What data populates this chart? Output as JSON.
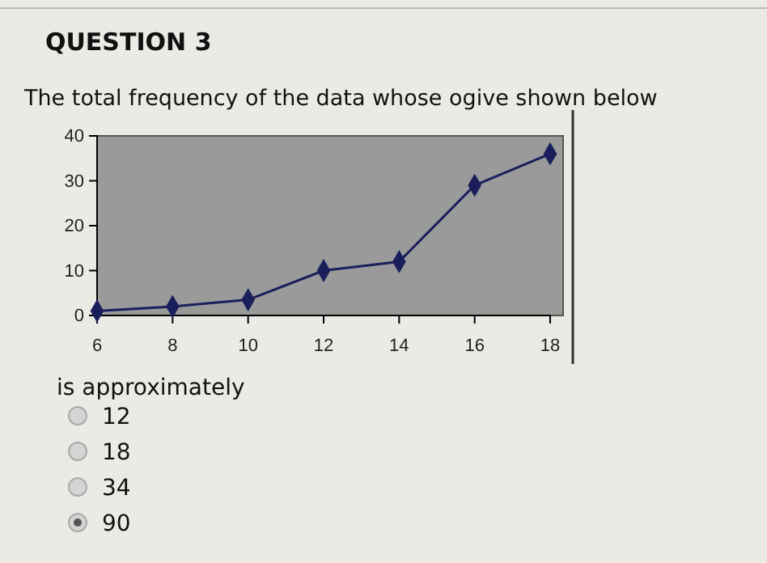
{
  "chart_data": {
    "type": "line",
    "title": "QUESTION 3",
    "subtitle": "The total frequency of the data whose ogive shown below",
    "x": [
      6,
      8,
      10,
      12,
      14,
      16,
      18
    ],
    "series": [
      {
        "color": "#1a1f5c",
        "values": [
          1,
          2,
          3.5,
          10,
          12,
          29,
          36
        ]
      }
    ],
    "xlim": [
      6,
      18
    ],
    "xticks": [
      6,
      8,
      10,
      12,
      14,
      16,
      18
    ],
    "ylim": [
      0,
      40
    ],
    "yticks": [
      0,
      10,
      20,
      30,
      40
    ],
    "marker": "diamond",
    "line_style": "solid",
    "grid": false,
    "annotations": [
      "is approximately",
      "12",
      "18",
      "34",
      "90"
    ]
  }
}
